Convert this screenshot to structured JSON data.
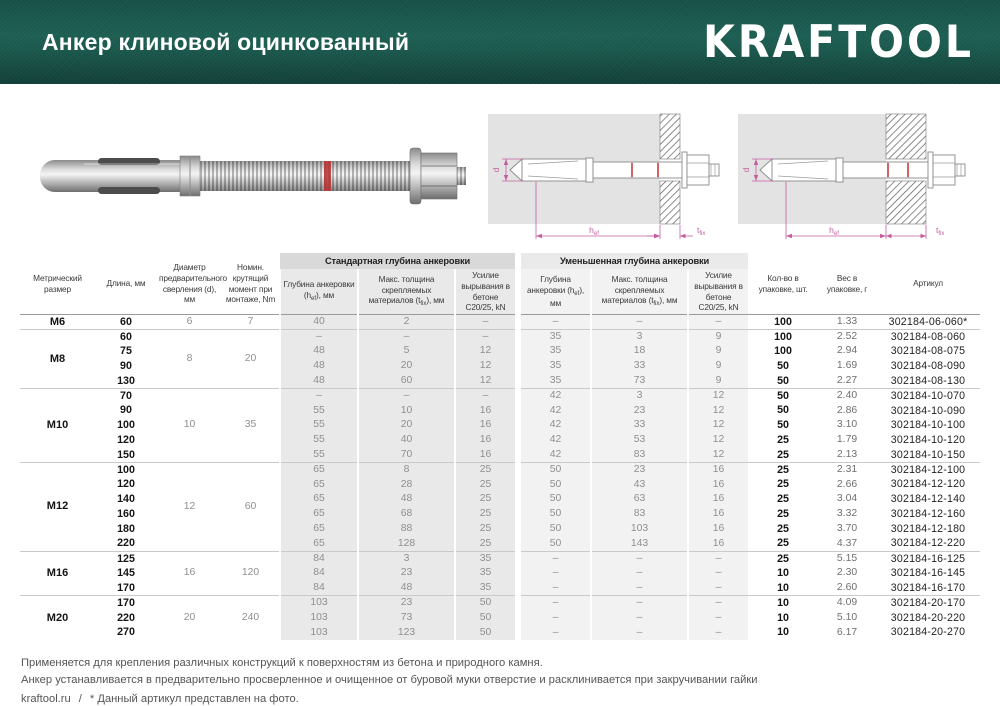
{
  "header": {
    "title": "Анкер клиновой оцинкованный",
    "brand": "KRAFTOOL",
    "bg_color": "#1d5e52"
  },
  "figures": {
    "dim_d": "d",
    "hef_main": "h",
    "hef_sub": "ef",
    "tfix_main": "t",
    "tfix_sub": "fix",
    "dimension_color": "#c45f9f",
    "red_mark_color": "#c53030"
  },
  "table": {
    "columns": {
      "size": "Метрический размер",
      "length": "Длина, мм",
      "drill": "Диаметр предварительного сверления (d), мм",
      "torque": "Номин. крутящий момент при монтаже, Nm",
      "qty": "Кол-во в упаковке, шт.",
      "weight": "Вес в упаковке, г",
      "article": "Артикул"
    },
    "groups_titles": {
      "std": "Стандартная глубина анкеровки",
      "reduced": "Уменьшенная глубина анкеровки"
    },
    "subcols": {
      "depth": {
        "pre": "Глубина анкеровки (h",
        "sub": "ef",
        "post": "), мм"
      },
      "thickness": {
        "pre": "Макс. толщина скрепляемых материалов (t",
        "sub": "fix",
        "post": "), мм"
      },
      "force": "Усилие вырывания в бетоне С20/25, kN"
    },
    "groups": [
      {
        "size": "M6",
        "diameter": "6",
        "torque": "7",
        "rows": [
          {
            "length": "60",
            "std": [
              "40",
              "2",
              "–"
            ],
            "red": [
              "–",
              "–",
              "–"
            ],
            "qty": "100",
            "weight": "1.33",
            "article": "302184-06-060*"
          }
        ]
      },
      {
        "size": "M8",
        "diameter": "8",
        "torque": "20",
        "rows": [
          {
            "length": "60",
            "std": [
              "–",
              "–",
              "–"
            ],
            "red": [
              "35",
              "3",
              "9"
            ],
            "qty": "100",
            "weight": "2.52",
            "article": "302184-08-060"
          },
          {
            "length": "75",
            "std": [
              "48",
              "5",
              "12"
            ],
            "red": [
              "35",
              "18",
              "9"
            ],
            "qty": "100",
            "weight": "2.94",
            "article": "302184-08-075"
          },
          {
            "length": "90",
            "std": [
              "48",
              "20",
              "12"
            ],
            "red": [
              "35",
              "33",
              "9"
            ],
            "qty": "50",
            "weight": "1.69",
            "article": "302184-08-090"
          },
          {
            "length": "130",
            "std": [
              "48",
              "60",
              "12"
            ],
            "red": [
              "35",
              "73",
              "9"
            ],
            "qty": "50",
            "weight": "2.27",
            "article": "302184-08-130"
          }
        ]
      },
      {
        "size": "M10",
        "diameter": "10",
        "torque": "35",
        "rows": [
          {
            "length": "70",
            "std": [
              "–",
              "–",
              "–"
            ],
            "red": [
              "42",
              "3",
              "12"
            ],
            "qty": "50",
            "weight": "2.40",
            "article": "302184-10-070"
          },
          {
            "length": "90",
            "std": [
              "55",
              "10",
              "16"
            ],
            "red": [
              "42",
              "23",
              "12"
            ],
            "qty": "50",
            "weight": "2.86",
            "article": "302184-10-090"
          },
          {
            "length": "100",
            "std": [
              "55",
              "20",
              "16"
            ],
            "red": [
              "42",
              "33",
              "12"
            ],
            "qty": "50",
            "weight": "3.10",
            "article": "302184-10-100"
          },
          {
            "length": "120",
            "std": [
              "55",
              "40",
              "16"
            ],
            "red": [
              "42",
              "53",
              "12"
            ],
            "qty": "25",
            "weight": "1.79",
            "article": "302184-10-120"
          },
          {
            "length": "150",
            "std": [
              "55",
              "70",
              "16"
            ],
            "red": [
              "42",
              "83",
              "12"
            ],
            "qty": "25",
            "weight": "2.13",
            "article": "302184-10-150"
          }
        ]
      },
      {
        "size": "M12",
        "diameter": "12",
        "torque": "60",
        "rows": [
          {
            "length": "100",
            "std": [
              "65",
              "8",
              "25"
            ],
            "red": [
              "50",
              "23",
              "16"
            ],
            "qty": "25",
            "weight": "2.31",
            "article": "302184-12-100"
          },
          {
            "length": "120",
            "std": [
              "65",
              "28",
              "25"
            ],
            "red": [
              "50",
              "43",
              "16"
            ],
            "qty": "25",
            "weight": "2.66",
            "article": "302184-12-120"
          },
          {
            "length": "140",
            "std": [
              "65",
              "48",
              "25"
            ],
            "red": [
              "50",
              "63",
              "16"
            ],
            "qty": "25",
            "weight": "3.04",
            "article": "302184-12-140"
          },
          {
            "length": "160",
            "std": [
              "65",
              "68",
              "25"
            ],
            "red": [
              "50",
              "83",
              "16"
            ],
            "qty": "25",
            "weight": "3.32",
            "article": "302184-12-160"
          },
          {
            "length": "180",
            "std": [
              "65",
              "88",
              "25"
            ],
            "red": [
              "50",
              "103",
              "16"
            ],
            "qty": "25",
            "weight": "3.70",
            "article": "302184-12-180"
          },
          {
            "length": "220",
            "std": [
              "65",
              "128",
              "25"
            ],
            "red": [
              "50",
              "143",
              "16"
            ],
            "qty": "25",
            "weight": "4.37",
            "article": "302184-12-220"
          }
        ]
      },
      {
        "size": "M16",
        "diameter": "16",
        "torque": "120",
        "rows": [
          {
            "length": "125",
            "std": [
              "84",
              "3",
              "35"
            ],
            "red": [
              "–",
              "–",
              "–"
            ],
            "qty": "25",
            "weight": "5.15",
            "article": "302184-16-125"
          },
          {
            "length": "145",
            "std": [
              "84",
              "23",
              "35"
            ],
            "red": [
              "–",
              "–",
              "–"
            ],
            "qty": "10",
            "weight": "2.30",
            "article": "302184-16-145"
          },
          {
            "length": "170",
            "std": [
              "84",
              "48",
              "35"
            ],
            "red": [
              "–",
              "–",
              "–"
            ],
            "qty": "10",
            "weight": "2.60",
            "article": "302184-16-170"
          }
        ]
      },
      {
        "size": "M20",
        "diameter": "20",
        "torque": "240",
        "rows": [
          {
            "length": "170",
            "std": [
              "103",
              "23",
              "50"
            ],
            "red": [
              "–",
              "–",
              "–"
            ],
            "qty": "10",
            "weight": "4.09",
            "article": "302184-20-170"
          },
          {
            "length": "220",
            "std": [
              "103",
              "73",
              "50"
            ],
            "red": [
              "–",
              "–",
              "–"
            ],
            "qty": "10",
            "weight": "5.10",
            "article": "302184-20-220"
          },
          {
            "length": "270",
            "std": [
              "103",
              "123",
              "50"
            ],
            "red": [
              "–",
              "–",
              "–"
            ],
            "qty": "10",
            "weight": "6.17",
            "article": "302184-20-270"
          }
        ]
      }
    ]
  },
  "footer": {
    "line1": "Применяется для крепления различных конструкций к поверхностям из бетона и природного камня.",
    "line2": "Анкер устанавливается в предварительно просверленное и очищенное от буровой муки отверстие и расклинивается при закручивании гайки",
    "site": "kraftool.ru",
    "separator": "/",
    "note": "* Данный артикул представлен на фото."
  }
}
